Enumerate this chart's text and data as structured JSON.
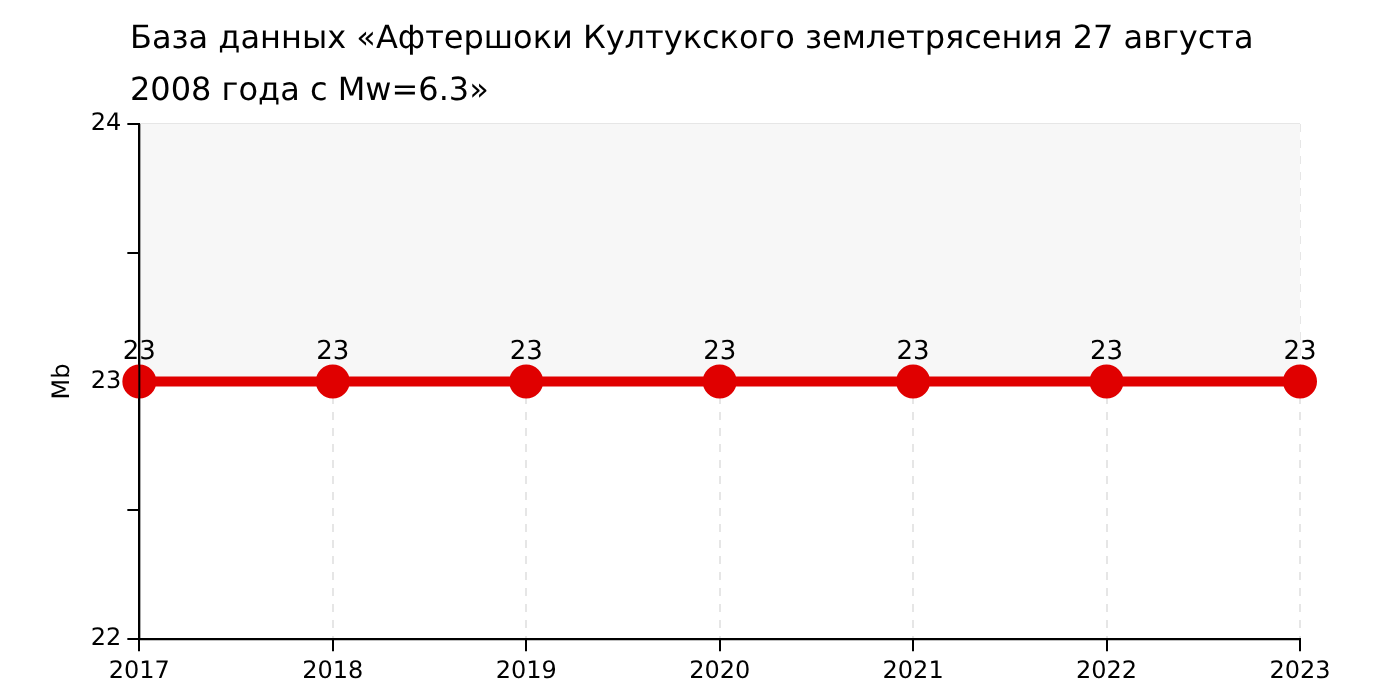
{
  "chart_data": {
    "type": "line",
    "title": "База данных «Афтершоки Култукского землетрясения 27 августа 2008 года с Mw=6.3»",
    "ylabel": "Mb",
    "categories": [
      "2017",
      "2018",
      "2019",
      "2020",
      "2021",
      "2022",
      "2023"
    ],
    "series": [
      {
        "color": "#e00000",
        "values": [
          23,
          23,
          23,
          23,
          23,
          23,
          23
        ]
      }
    ],
    "ylim": [
      22,
      24
    ],
    "yticks": [
      22,
      {
        "value": 22.5,
        "label": null
      },
      23,
      {
        "value": 23.5,
        "label": null
      },
      24
    ],
    "bands": [
      {
        "axis": "y",
        "from": 23,
        "to": 24,
        "color": "#f7f7f7"
      }
    ],
    "grid": true,
    "legend": false,
    "marker": "circle",
    "line_style": "solid",
    "data_labels": true
  }
}
